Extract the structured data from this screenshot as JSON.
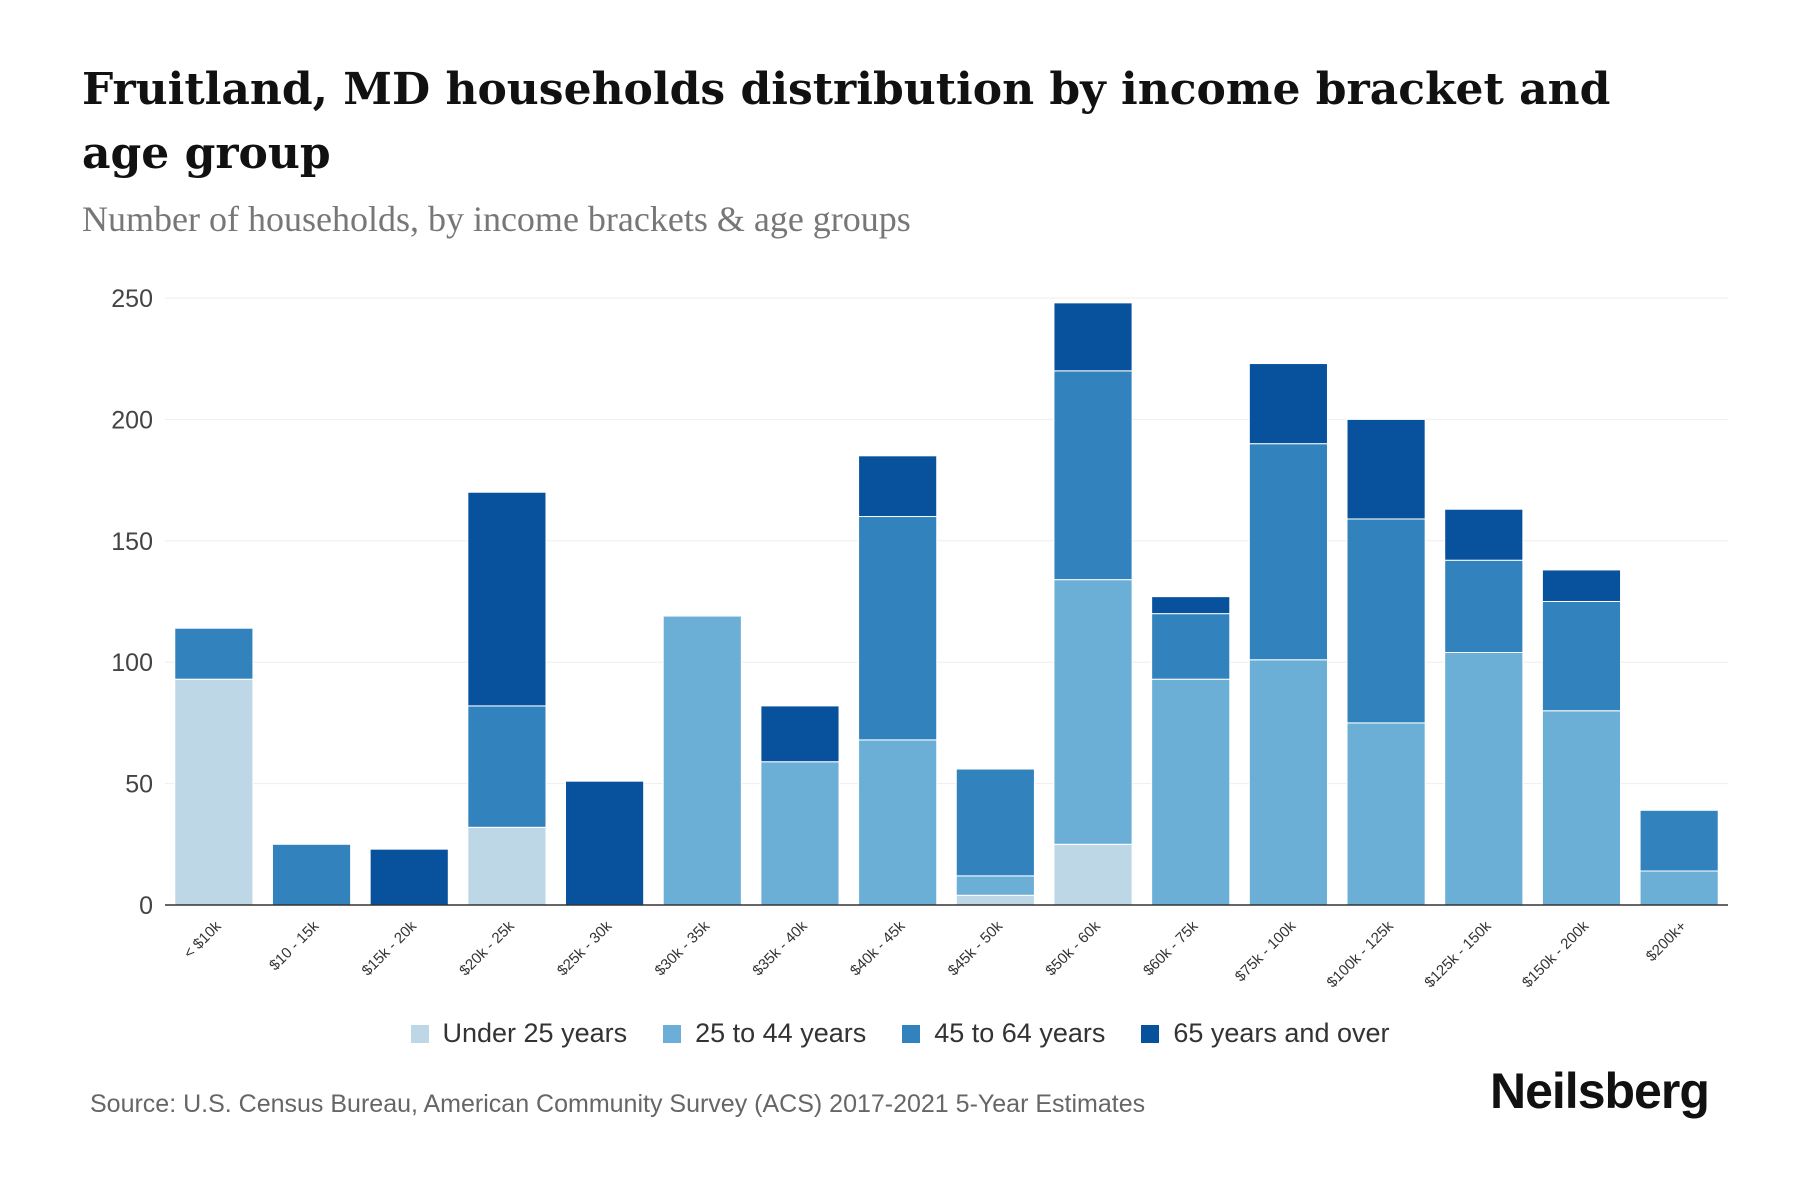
{
  "title": "Fruitland, MD households distribution by income bracket and age group",
  "subtitle": "Number of households, by income brackets & age groups",
  "source": "Source: U.S. Census Bureau, American Community Survey (ACS) 2017-2021 5-Year Estimates",
  "logo": "Neilsberg",
  "chart_data": {
    "type": "bar",
    "stacked": true,
    "title": "Fruitland, MD households distribution by income bracket and age group",
    "ylabel": "Number of households",
    "ylim": [
      0,
      250
    ],
    "yticks": [
      "0",
      "50",
      "100",
      "150",
      "200",
      "250"
    ],
    "grid": true,
    "legend_position": "bottom",
    "categories": [
      "< $10k",
      "$10 - 15k",
      "$15k - 20k",
      "$20k - 25k",
      "$25k - 30k",
      "$30k - 35k",
      "$35k - 40k",
      "$40k - 45k",
      "$45k - 50k",
      "$50k - 60k",
      "$60k - 75k",
      "$75k - 100k",
      "$100k - 125k",
      "$125k - 150k",
      "$150k - 200k",
      "$200k+"
    ],
    "series": [
      {
        "name": "Under 25 years",
        "color": "#bdd7e7",
        "values": [
          93,
          0,
          0,
          32,
          0,
          0,
          0,
          0,
          4,
          25,
          0,
          0,
          0,
          0,
          0,
          0
        ]
      },
      {
        "name": "25 to 44 years",
        "color": "#6baed6",
        "values": [
          0,
          0,
          0,
          0,
          0,
          119,
          59,
          68,
          8,
          109,
          93,
          101,
          75,
          104,
          80,
          14
        ]
      },
      {
        "name": "45 to 64 years",
        "color": "#3182bd",
        "values": [
          21,
          25,
          0,
          50,
          0,
          0,
          0,
          92,
          44,
          86,
          27,
          89,
          84,
          38,
          45,
          25
        ]
      },
      {
        "name": "65 years and over",
        "color": "#08519c",
        "values": [
          0,
          0,
          23,
          88,
          51,
          0,
          23,
          25,
          0,
          28,
          7,
          33,
          41,
          21,
          13,
          0
        ]
      }
    ]
  }
}
